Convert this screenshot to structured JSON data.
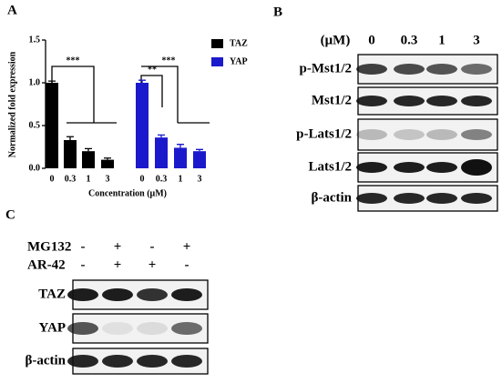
{
  "panel_labels": [
    "A",
    "B",
    "C"
  ],
  "chart_data": {
    "type": "bar",
    "ylabel": "Normalized fold expression",
    "xlabel": "Concentration (μM)",
    "categories": [
      "0",
      "0.3",
      "1",
      "3",
      "0",
      "0.3",
      "1",
      "3"
    ],
    "series": [
      {
        "name": "TAZ",
        "color": "#000000",
        "values": [
          1.0,
          0.33,
          0.2,
          0.1,
          null,
          null,
          null,
          null
        ],
        "errors": [
          0.02,
          0.04,
          0.03,
          0.02,
          null,
          null,
          null,
          null
        ]
      },
      {
        "name": "YAP",
        "color": "#1a1acc",
        "values": [
          null,
          null,
          null,
          null,
          1.0,
          0.36,
          0.24,
          0.2
        ],
        "errors": [
          null,
          null,
          null,
          null,
          0.03,
          0.03,
          0.04,
          0.02
        ]
      }
    ],
    "ylim": [
      0,
      1.5
    ],
    "yticks": [
      {
        "value": 0,
        "label": "0.0"
      },
      0.5,
      {
        "value": 1,
        "label": "1.0"
      },
      1.5
    ],
    "annotations": [
      "***",
      "**",
      "***"
    ],
    "legend": "upper right"
  },
  "blot_b": {
    "unit": "(μM)",
    "lanes": [
      "0",
      "0.3",
      "1",
      "3"
    ],
    "rows": [
      "p-Mst1/2",
      "Mst1/2",
      "p-Lats1/2",
      "Lats1/2",
      "β-actin"
    ]
  },
  "blot_c": {
    "treatments": [
      {
        "name": "MG132",
        "signs": [
          "-",
          "+",
          "-",
          "+"
        ]
      },
      {
        "name": "AR-42",
        "signs": [
          "-",
          "+",
          "+",
          "-"
        ]
      }
    ],
    "rows": [
      "TAZ",
      "YAP",
      "β-actin"
    ]
  }
}
